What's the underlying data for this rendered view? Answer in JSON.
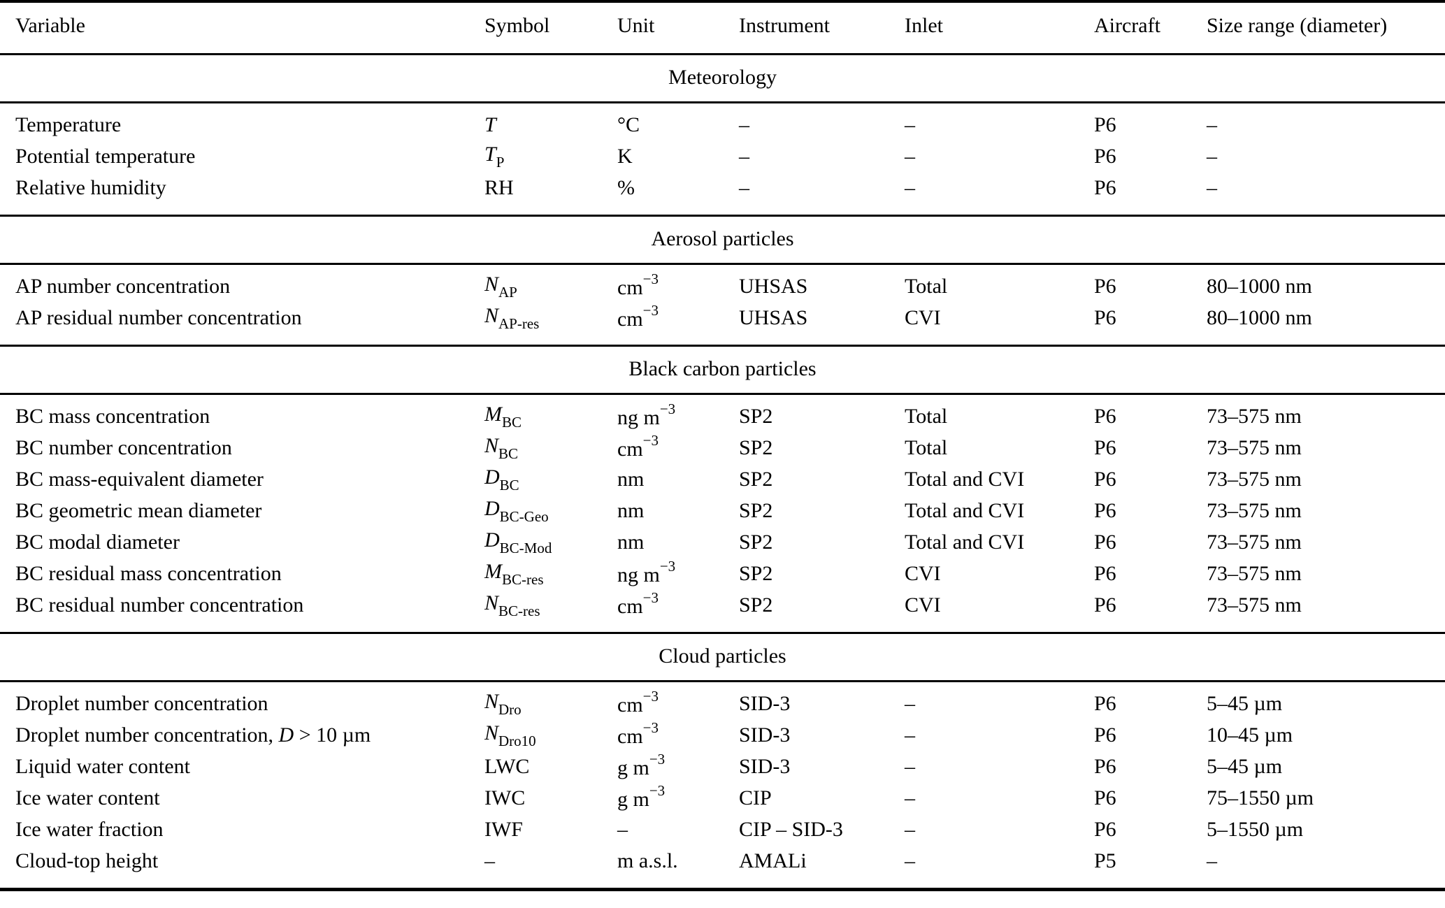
{
  "page": {
    "background_color": "#ffffff",
    "text_color": "#000000",
    "kind": "scientific-paper-table"
  },
  "table": {
    "columns": [
      {
        "key": "variable",
        "label": "Variable"
      },
      {
        "key": "symbol",
        "label": "Symbol"
      },
      {
        "key": "unit",
        "label": "Unit"
      },
      {
        "key": "instrument",
        "label": "Instrument"
      },
      {
        "key": "inlet",
        "label": "Inlet"
      },
      {
        "key": "aircraft",
        "label": "Aircraft"
      },
      {
        "key": "size_range",
        "label": "Size range (diameter)"
      }
    ],
    "sections": [
      {
        "title": "Meteorology",
        "rows": [
          {
            "variable": "Temperature",
            "symbol": "*T*",
            "unit": "°C",
            "instrument": "–",
            "inlet": "–",
            "aircraft": "P6",
            "size_range": "–"
          },
          {
            "variable": "Potential temperature",
            "symbol": "*T*_P_",
            "unit": "K",
            "instrument": "–",
            "inlet": "–",
            "aircraft": "P6",
            "size_range": "–"
          },
          {
            "variable": "Relative humidity",
            "symbol": "RH",
            "unit": "%",
            "instrument": "–",
            "inlet": "–",
            "aircraft": "P6",
            "size_range": "–"
          }
        ]
      },
      {
        "title": "Aerosol particles",
        "rows": [
          {
            "variable": "AP number concentration",
            "symbol": "*N*_AP_",
            "unit": "cm^−3^",
            "instrument": "UHSAS",
            "inlet": "Total",
            "aircraft": "P6",
            "size_range": "80–1000 nm"
          },
          {
            "variable": "AP residual number concentration",
            "symbol": "*N*_AP-res_",
            "unit": "cm^−3^",
            "instrument": "UHSAS",
            "inlet": "CVI",
            "aircraft": "P6",
            "size_range": "80–1000 nm"
          }
        ]
      },
      {
        "title": "Black carbon particles",
        "rows": [
          {
            "variable": "BC mass concentration",
            "symbol": "*M*_BC_",
            "unit": "ng m^−3^",
            "instrument": "SP2",
            "inlet": "Total",
            "aircraft": "P6",
            "size_range": "73–575 nm"
          },
          {
            "variable": "BC number concentration",
            "symbol": "*N*_BC_",
            "unit": "cm^−3^",
            "instrument": "SP2",
            "inlet": "Total",
            "aircraft": "P6",
            "size_range": "73–575 nm"
          },
          {
            "variable": "BC mass-equivalent diameter",
            "symbol": "*D*_BC_",
            "unit": "nm",
            "instrument": "SP2",
            "inlet": "Total and CVI",
            "aircraft": "P6",
            "size_range": "73–575 nm"
          },
          {
            "variable": "BC geometric mean diameter",
            "symbol": "*D*_BC-Geo_",
            "unit": "nm",
            "instrument": "SP2",
            "inlet": "Total and CVI",
            "aircraft": "P6",
            "size_range": "73–575 nm"
          },
          {
            "variable": "BC modal diameter",
            "symbol": "*D*_BC-Mod_",
            "unit": "nm",
            "instrument": "SP2",
            "inlet": "Total and CVI",
            "aircraft": "P6",
            "size_range": "73–575 nm"
          },
          {
            "variable": "BC residual mass concentration",
            "symbol": "*M*_BC-res_",
            "unit": "ng m^−3^",
            "instrument": "SP2",
            "inlet": "CVI",
            "aircraft": "P6",
            "size_range": "73–575 nm"
          },
          {
            "variable": "BC residual number concentration",
            "symbol": "*N*_BC-res_",
            "unit": "cm^−3^",
            "instrument": "SP2",
            "inlet": "CVI",
            "aircraft": "P6",
            "size_range": "73–575 nm"
          }
        ]
      },
      {
        "title": "Cloud particles",
        "rows": [
          {
            "variable": "Droplet number concentration",
            "symbol": "*N*_Dro_",
            "unit": "cm^−3^",
            "instrument": "SID-3",
            "inlet": "–",
            "aircraft": "P6",
            "size_range": "5–45 µm"
          },
          {
            "variable": "Droplet number concentration, *D* > 10 µm",
            "symbol": "*N*_Dro10_",
            "unit": "cm^−3^",
            "instrument": "SID-3",
            "inlet": "–",
            "aircraft": "P6",
            "size_range": "10–45 µm"
          },
          {
            "variable": "Liquid water content",
            "symbol": "LWC",
            "unit": "g m^−3^",
            "instrument": "SID-3",
            "inlet": "–",
            "aircraft": "P6",
            "size_range": "5–45 µm"
          },
          {
            "variable": "Ice water content",
            "symbol": "IWC",
            "unit": "g m^−3^",
            "instrument": "CIP",
            "inlet": "–",
            "aircraft": "P6",
            "size_range": "75–1550 µm"
          },
          {
            "variable": "Ice water fraction",
            "symbol": "IWF",
            "unit": "–",
            "instrument": "CIP – SID-3",
            "inlet": "–",
            "aircraft": "P6",
            "size_range": "5–1550 µm"
          },
          {
            "variable": "Cloud-top height",
            "symbol": "–",
            "unit": "m a.s.l.",
            "instrument": "AMALi",
            "inlet": "–",
            "aircraft": "P5",
            "size_range": "–"
          }
        ]
      }
    ]
  }
}
